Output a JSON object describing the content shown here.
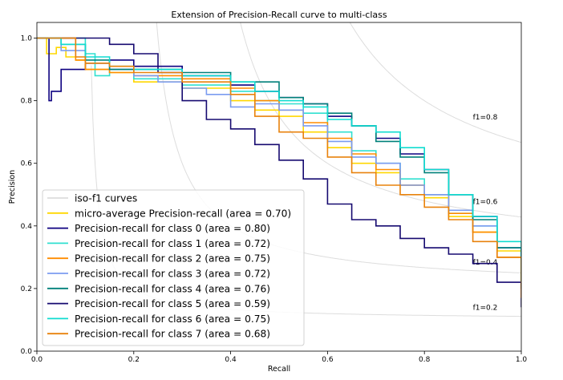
{
  "chart_data": {
    "type": "line",
    "title": "Extension of Precision-Recall curve to multi-class",
    "xlabel": "Recall",
    "ylabel": "Precision",
    "xlim": [
      0.0,
      1.0
    ],
    "ylim": [
      0.0,
      1.05
    ],
    "xticks": [
      "0.0",
      "0.2",
      "0.4",
      "0.6",
      "0.8",
      "1.0"
    ],
    "yticks": [
      "0.0",
      "0.2",
      "0.4",
      "0.6",
      "0.8",
      "1.0"
    ],
    "grid": false,
    "legend_position": "lower-left",
    "iso_f1": {
      "legend_label": "iso-f1 curves",
      "color": "#dddddd",
      "values": [
        0.2,
        0.4,
        0.6,
        0.8
      ],
      "labels": [
        "f1=0.2",
        "f1=0.4",
        "f1=0.6",
        "f1=0.8"
      ]
    },
    "series": [
      {
        "name": "micro-average Precision-recall (area = 0.70)",
        "color": "#ffd700",
        "x": [
          0.0,
          0.02,
          0.04,
          0.06,
          0.08,
          0.1,
          0.15,
          0.2,
          0.3,
          0.4,
          0.45,
          0.5,
          0.55,
          0.6,
          0.65,
          0.7,
          0.75,
          0.8,
          0.85,
          0.9,
          0.95,
          1.0
        ],
        "y": [
          1.0,
          0.95,
          0.97,
          0.94,
          0.93,
          0.9,
          0.89,
          0.86,
          0.84,
          0.8,
          0.77,
          0.75,
          0.7,
          0.65,
          0.6,
          0.57,
          0.53,
          0.49,
          0.43,
          0.38,
          0.32,
          0.25
        ]
      },
      {
        "name": "Precision-recall for class 0 (area = 0.80)",
        "color": "#0d0080",
        "x": [
          0.0,
          0.02,
          0.025,
          0.03,
          0.05,
          0.1,
          0.15,
          0.2,
          0.3,
          0.4,
          0.45,
          0.5,
          0.55,
          0.6,
          0.65,
          0.7,
          0.75,
          0.8,
          0.85,
          0.9,
          0.95,
          1.0
        ],
        "y": [
          1.0,
          1.0,
          0.8,
          0.83,
          0.9,
          0.92,
          0.93,
          0.91,
          0.88,
          0.85,
          0.83,
          0.81,
          0.79,
          0.75,
          0.72,
          0.68,
          0.63,
          0.58,
          0.5,
          0.43,
          0.33,
          0.2
        ]
      },
      {
        "name": "Precision-recall for class 1 (area = 0.72)",
        "color": "#30e0d0",
        "x": [
          0.0,
          0.05,
          0.1,
          0.12,
          0.15,
          0.2,
          0.3,
          0.4,
          0.45,
          0.5,
          0.55,
          0.6,
          0.65,
          0.7,
          0.75,
          0.8,
          0.85,
          0.9,
          0.95,
          1.0
        ],
        "y": [
          1.0,
          1.0,
          0.95,
          0.88,
          0.9,
          0.87,
          0.85,
          0.83,
          0.8,
          0.79,
          0.76,
          0.7,
          0.64,
          0.6,
          0.55,
          0.5,
          0.44,
          0.4,
          0.33,
          0.22
        ]
      },
      {
        "name": "Precision-recall for class 2 (area = 0.75)",
        "color": "#ff8c00",
        "x": [
          0.0,
          0.05,
          0.08,
          0.1,
          0.15,
          0.2,
          0.3,
          0.4,
          0.45,
          0.5,
          0.55,
          0.6,
          0.65,
          0.7,
          0.75,
          0.8,
          0.85,
          0.9,
          0.95,
          1.0
        ],
        "y": [
          1.0,
          1.0,
          0.93,
          0.9,
          0.89,
          0.88,
          0.87,
          0.84,
          0.8,
          0.77,
          0.73,
          0.68,
          0.63,
          0.58,
          0.53,
          0.5,
          0.44,
          0.38,
          0.3,
          0.2
        ]
      },
      {
        "name": "Precision-recall for class 3 (area = 0.72)",
        "color": "#7b9cf0",
        "x": [
          0.0,
          0.05,
          0.1,
          0.15,
          0.2,
          0.25,
          0.3,
          0.35,
          0.4,
          0.45,
          0.5,
          0.55,
          0.6,
          0.65,
          0.7,
          0.75,
          0.8,
          0.85,
          0.9,
          0.95,
          1.0
        ],
        "y": [
          1.0,
          0.96,
          0.92,
          0.9,
          0.88,
          0.86,
          0.84,
          0.82,
          0.78,
          0.79,
          0.77,
          0.72,
          0.67,
          0.62,
          0.6,
          0.53,
          0.5,
          0.45,
          0.4,
          0.33,
          0.2
        ]
      },
      {
        "name": "Precision-recall for class 4 (area = 0.76)",
        "color": "#00807a",
        "x": [
          0.0,
          0.05,
          0.1,
          0.15,
          0.2,
          0.3,
          0.4,
          0.5,
          0.55,
          0.6,
          0.65,
          0.7,
          0.75,
          0.8,
          0.85,
          0.9,
          0.95,
          1.0
        ],
        "y": [
          1.0,
          0.98,
          0.93,
          0.9,
          0.9,
          0.89,
          0.86,
          0.81,
          0.79,
          0.76,
          0.72,
          0.67,
          0.62,
          0.57,
          0.5,
          0.42,
          0.33,
          0.2
        ]
      },
      {
        "name": "Precision-recall for class 5 (area = 0.59)",
        "color": "#160a70",
        "x": [
          0.0,
          0.1,
          0.15,
          0.2,
          0.25,
          0.3,
          0.35,
          0.4,
          0.45,
          0.5,
          0.55,
          0.6,
          0.65,
          0.7,
          0.75,
          0.8,
          0.85,
          0.9,
          0.95,
          1.0
        ],
        "y": [
          1.0,
          1.0,
          0.98,
          0.95,
          0.89,
          0.8,
          0.74,
          0.71,
          0.66,
          0.61,
          0.55,
          0.47,
          0.42,
          0.4,
          0.36,
          0.33,
          0.31,
          0.28,
          0.22,
          0.14
        ]
      },
      {
        "name": "Precision-recall for class 6 (area = 0.75)",
        "color": "#10dcd0",
        "x": [
          0.0,
          0.05,
          0.1,
          0.15,
          0.2,
          0.3,
          0.4,
          0.45,
          0.5,
          0.55,
          0.6,
          0.65,
          0.7,
          0.75,
          0.8,
          0.85,
          0.9,
          0.95,
          1.0
        ],
        "y": [
          1.0,
          0.98,
          0.94,
          0.91,
          0.9,
          0.88,
          0.86,
          0.83,
          0.8,
          0.78,
          0.74,
          0.72,
          0.7,
          0.65,
          0.58,
          0.5,
          0.43,
          0.35,
          0.22
        ]
      },
      {
        "name": "Precision-recall for class 7 (area = 0.68)",
        "color": "#e8820c",
        "x": [
          0.0,
          0.05,
          0.08,
          0.1,
          0.15,
          0.2,
          0.3,
          0.4,
          0.45,
          0.5,
          0.55,
          0.6,
          0.65,
          0.7,
          0.75,
          0.8,
          0.85,
          0.9,
          0.95,
          1.0
        ],
        "y": [
          1.0,
          1.0,
          0.94,
          0.92,
          0.91,
          0.89,
          0.86,
          0.82,
          0.75,
          0.7,
          0.68,
          0.62,
          0.57,
          0.53,
          0.5,
          0.46,
          0.42,
          0.35,
          0.3,
          0.17
        ]
      }
    ]
  }
}
